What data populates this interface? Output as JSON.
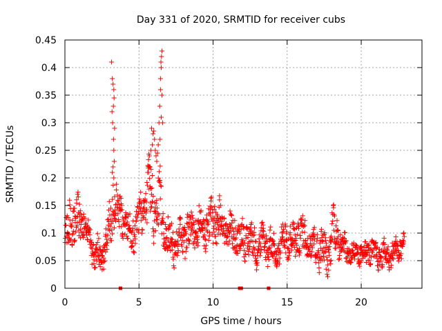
{
  "chart_data": {
    "type": "scatter",
    "title": "Day 331 of 2020, SRMTID for receiver cubs",
    "xlabel": "GPS time / hours",
    "ylabel": "SRMTID / TECUs",
    "xlim": [
      0,
      24.1
    ],
    "ylim": [
      0,
      0.45
    ],
    "grid": true,
    "marker": "+",
    "color": "#ff0000",
    "x_ticks": [
      0,
      5,
      10,
      15,
      20
    ],
    "x_tick_labels": [
      "0",
      "5",
      "10",
      "15",
      "20"
    ],
    "y_ticks": [
      0,
      0.05,
      0.1,
      0.15,
      0.2,
      0.25,
      0.3,
      0.35,
      0.4,
      0.45
    ],
    "y_tick_labels": [
      "0",
      "0.05",
      "0.1",
      "0.15",
      "0.2",
      "0.25",
      "0.3",
      "0.35",
      "0.4",
      "0.45"
    ],
    "series": [
      {
        "name": "SRMTID",
        "profile_x": [
          0.0,
          0.3,
          0.6,
          1.0,
          1.3,
          1.6,
          2.0,
          2.4,
          2.8,
          3.1,
          3.3,
          3.5,
          3.7,
          4.0,
          4.3,
          4.6,
          5.0,
          5.3,
          5.6,
          5.9,
          6.2,
          6.4,
          6.6,
          6.9,
          7.3,
          7.8,
          8.3,
          8.8,
          9.3,
          9.8,
          10.3,
          10.8,
          11.3,
          11.8,
          12.3,
          12.8,
          13.3,
          13.8,
          14.3,
          14.8,
          15.3,
          15.8,
          16.3,
          16.8,
          17.3,
          17.8,
          18.1,
          18.5,
          19.0,
          19.5,
          20.0,
          20.5,
          21.0,
          21.5,
          22.0,
          22.5,
          22.9
        ],
        "profile_mean": [
          0.08,
          0.11,
          0.12,
          0.12,
          0.13,
          0.09,
          0.06,
          0.06,
          0.08,
          0.12,
          0.17,
          0.15,
          0.13,
          0.13,
          0.1,
          0.1,
          0.12,
          0.14,
          0.17,
          0.16,
          0.16,
          0.15,
          0.12,
          0.09,
          0.08,
          0.09,
          0.1,
          0.11,
          0.11,
          0.12,
          0.12,
          0.11,
          0.1,
          0.09,
          0.09,
          0.08,
          0.08,
          0.08,
          0.06,
          0.09,
          0.08,
          0.1,
          0.09,
          0.08,
          0.07,
          0.06,
          0.11,
          0.09,
          0.07,
          0.06,
          0.06,
          0.07,
          0.06,
          0.06,
          0.06,
          0.07,
          0.08
        ],
        "profile_spread": [
          0.03,
          0.04,
          0.04,
          0.04,
          0.03,
          0.03,
          0.02,
          0.03,
          0.03,
          0.04,
          0.05,
          0.03,
          0.03,
          0.03,
          0.03,
          0.03,
          0.03,
          0.04,
          0.05,
          0.06,
          0.05,
          0.05,
          0.04,
          0.03,
          0.03,
          0.03,
          0.03,
          0.03,
          0.03,
          0.04,
          0.04,
          0.03,
          0.03,
          0.03,
          0.03,
          0.03,
          0.03,
          0.03,
          0.02,
          0.03,
          0.03,
          0.03,
          0.03,
          0.03,
          0.03,
          0.03,
          0.04,
          0.03,
          0.02,
          0.02,
          0.02,
          0.02,
          0.02,
          0.02,
          0.02,
          0.02,
          0.02
        ],
        "sample_count": 1400,
        "spike_points": [
          [
            3.15,
            0.41
          ],
          [
            3.2,
            0.38
          ],
          [
            3.25,
            0.37
          ],
          [
            3.3,
            0.36
          ],
          [
            3.32,
            0.345
          ],
          [
            3.27,
            0.33
          ],
          [
            3.18,
            0.32
          ],
          [
            3.22,
            0.3
          ],
          [
            3.35,
            0.29
          ],
          [
            3.28,
            0.27
          ],
          [
            3.3,
            0.25
          ],
          [
            3.33,
            0.23
          ],
          [
            3.25,
            0.22
          ],
          [
            3.2,
            0.21
          ],
          [
            3.3,
            0.2
          ],
          [
            5.7,
            0.24
          ],
          [
            5.8,
            0.25
          ],
          [
            5.9,
            0.26
          ],
          [
            5.95,
            0.28
          ],
          [
            6.0,
            0.285
          ],
          [
            5.85,
            0.29
          ],
          [
            6.05,
            0.27
          ],
          [
            6.1,
            0.25
          ],
          [
            6.15,
            0.24
          ],
          [
            6.2,
            0.23
          ],
          [
            6.25,
            0.245
          ],
          [
            6.3,
            0.26
          ],
          [
            6.35,
            0.3
          ],
          [
            6.4,
            0.33
          ],
          [
            6.45,
            0.36
          ],
          [
            6.5,
            0.4
          ],
          [
            6.52,
            0.42
          ],
          [
            6.55,
            0.43
          ],
          [
            6.48,
            0.41
          ],
          [
            6.45,
            0.38
          ],
          [
            6.55,
            0.35
          ],
          [
            6.5,
            0.31
          ],
          [
            6.42,
            0.27
          ],
          [
            6.6,
            0.3
          ],
          [
            5.75,
            0.22
          ],
          [
            5.65,
            0.21
          ]
        ],
        "ground_markers": [
          3.75,
          11.8,
          11.9,
          13.75
        ]
      }
    ]
  }
}
